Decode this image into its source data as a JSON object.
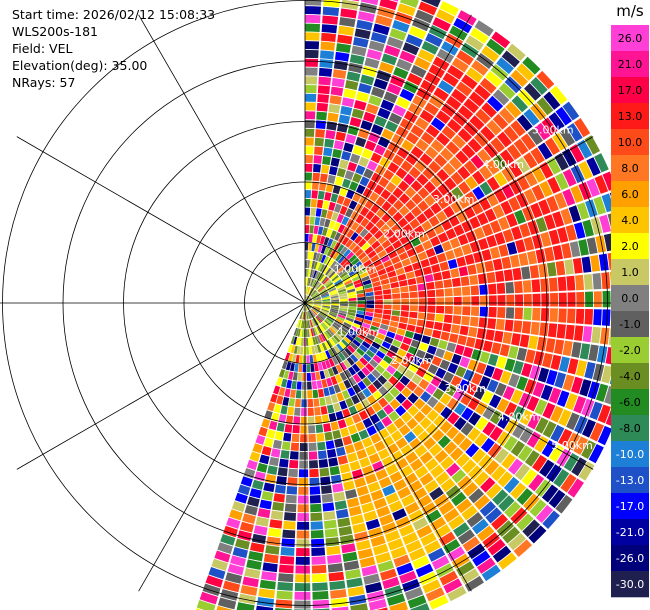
{
  "header": {
    "start_time": "Start time: 2026/02/12 15:08:33",
    "instrument": "WLS200s-181",
    "field": "Field: VEL",
    "elevation": "Elevation(deg): 35.00",
    "nrays": "NRays: 57"
  },
  "chart_data": {
    "type": "heatmap",
    "projection": "polar-ppi",
    "field": "VEL",
    "elevation_deg": 35.0,
    "nrays": 57,
    "azimuth_range_deg": [
      0,
      200
    ],
    "range_km": [
      0,
      5.5
    ],
    "range_rings_km": [
      1,
      2,
      3,
      4,
      5
    ],
    "range_labels": [
      "1.00km",
      "2.00km",
      "3.00km",
      "4.00km",
      "5.00km"
    ],
    "range_label_positions": [
      "upper-right",
      "lower-right"
    ],
    "spokes_deg": [
      0,
      30,
      60,
      90,
      120,
      150,
      180,
      210,
      240,
      270,
      300,
      330
    ],
    "sector_structure": [
      {
        "azimuth_deg": [
          0,
          28
        ],
        "range_km": [
          0,
          5.5
        ],
        "pattern": "noisy mixed"
      },
      {
        "azimuth_deg": [
          28,
          105
        ],
        "range_km": [
          1.2,
          4.6
        ],
        "value_range_ms": [
          8,
          17
        ],
        "pattern": "coherent red/orange"
      },
      {
        "azimuth_deg": [
          130,
          170
        ],
        "range_km": [
          2.5,
          4.5
        ],
        "value_range_ms": [
          4,
          8
        ],
        "pattern": "coherent yellow/orange"
      },
      {
        "azimuth_deg": [
          0,
          200
        ],
        "range_km": [
          0,
          0.8
        ],
        "value_range_ms": [
          -4,
          4
        ],
        "pattern": "near-zero green/grey/yellow"
      }
    ],
    "colorbar": {
      "title": "m/s",
      "ticks": [
        "26.0",
        "21.0",
        "17.0",
        "13.0",
        "10.0",
        "8.0",
        "6.0",
        "4.0",
        "2.0",
        "1.0",
        "0.0",
        "-1.0",
        "-2.0",
        "-4.0",
        "-6.0",
        "-8.0",
        "-10.0",
        "-13.0",
        "-17.0",
        "-21.0",
        "-26.0",
        "-30.0"
      ],
      "colors": [
        "#ff3fd6",
        "#ff1493",
        "#ff0048",
        "#ff1a1a",
        "#ff4a1a",
        "#ff7722",
        "#ffa000",
        "#ffc400",
        "#ffff00",
        "#c8c864",
        "#808080",
        "#606060",
        "#9acd32",
        "#6b8e23",
        "#228b22",
        "#2e8b57",
        "#1e7fd6",
        "#1e50c8",
        "#0000ff",
        "#0000a0",
        "#00007a",
        "#202050"
      ]
    }
  }
}
